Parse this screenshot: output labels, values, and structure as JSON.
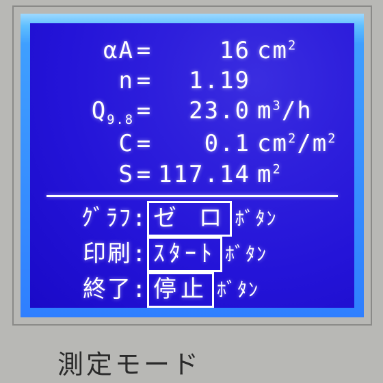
{
  "screen": {
    "bg_color": "#b8b8b5",
    "lcd_bg_start": "#3a2de0",
    "lcd_bg_end": "#1a0ac8",
    "text_color": "#ffffff",
    "rows": [
      {
        "label": "αA",
        "eq": "=",
        "value": "16",
        "unit_html": "cm<sup>2</sup>"
      },
      {
        "label": "n",
        "eq": "=",
        "value": "1.19",
        "unit_html": ""
      },
      {
        "label": "Q<sub>9.8</sub>",
        "eq": "=",
        "value": "23.0",
        "unit_html": "m<sup>3</sup>/h"
      },
      {
        "label": "C",
        "eq": "=",
        "value": "0.1",
        "unit_html": "cm<sup>2</sup>/m<sup>2</sup>"
      },
      {
        "label": "S",
        "eq": "=",
        "value": "117.14",
        "unit_html": "m<sup>2</sup>"
      }
    ],
    "menu": [
      {
        "label": "ｸﾞﾗﾌ",
        "button": "ゼ ロ",
        "suffix": "ﾎﾞﾀﾝ"
      },
      {
        "label": "印刷",
        "button": "ｽﾀｰﾄ",
        "suffix": "ﾎﾞﾀﾝ"
      },
      {
        "label": "終了",
        "button": "停止",
        "suffix": "ﾎﾞﾀﾝ"
      }
    ]
  },
  "mode_label": "測定モード"
}
